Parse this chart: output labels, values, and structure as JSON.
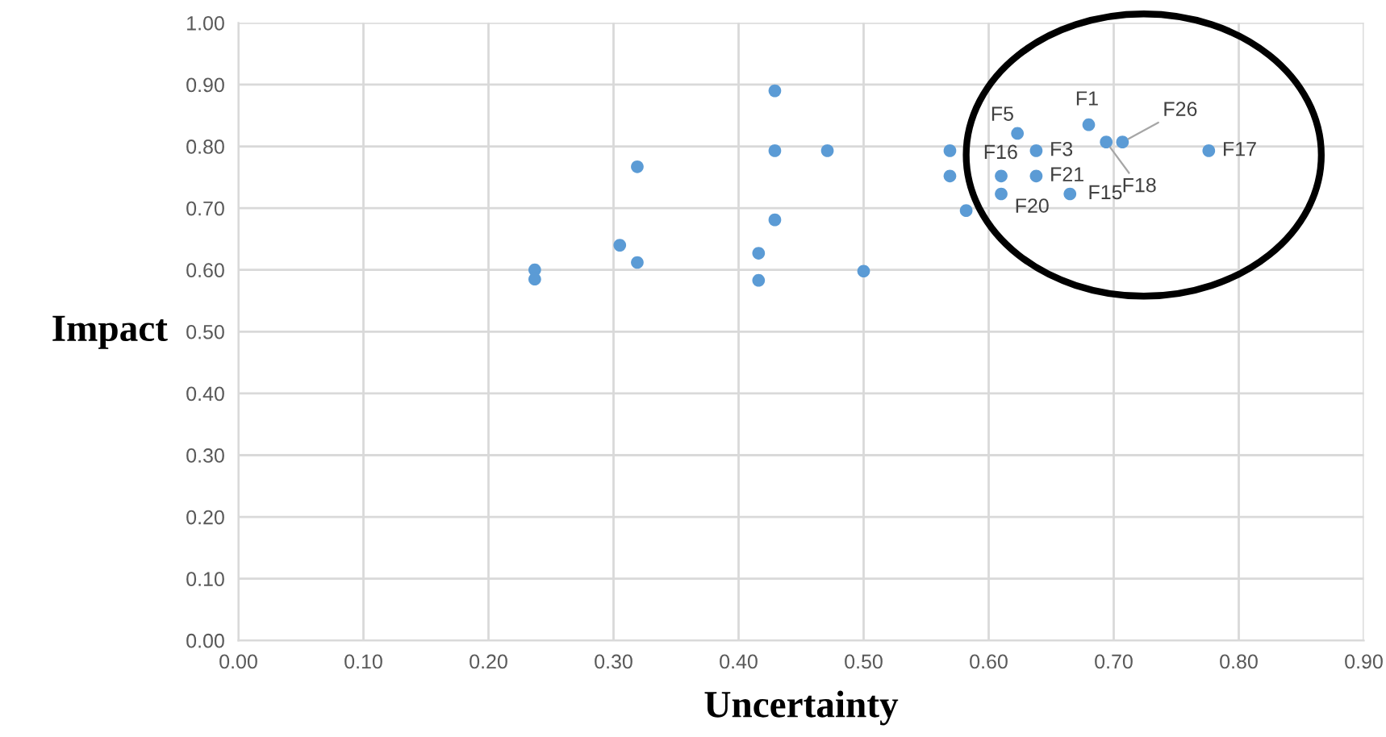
{
  "chart_data": {
    "type": "scatter",
    "xlabel": "Uncertainty",
    "ylabel": "Impact",
    "x": [
      0.237,
      0.237,
      0.429,
      0.429,
      0.471,
      0.319,
      0.429,
      0.305,
      0.319,
      0.416,
      0.416,
      0.5,
      0.569,
      0.569,
      0.582,
      0.623,
      0.638,
      0.61,
      0.638,
      0.61,
      0.665,
      0.68,
      0.694,
      0.707,
      0.776
    ],
    "series": [
      {
        "color": "#5b9bd5",
        "values": [
          0.6,
          0.585,
          0.89,
          0.793,
          0.793,
          0.767,
          0.681,
          0.64,
          0.612,
          0.627,
          0.583,
          0.598,
          0.793,
          0.752,
          0.696,
          0.821,
          0.793,
          0.752,
          0.752,
          0.723,
          0.723,
          0.835,
          0.807,
          0.807,
          0.793
        ],
        "value_labels": [
          null,
          null,
          null,
          null,
          null,
          null,
          null,
          null,
          null,
          null,
          null,
          null,
          null,
          null,
          null,
          "F5",
          "F3",
          "F16",
          "F21",
          "F20",
          "F15",
          "F1",
          "F18",
          "F26",
          "F17"
        ]
      }
    ],
    "xlim": [
      0,
      0.9
    ],
    "xticks": [
      {
        "value": 0,
        "label": "0.00"
      },
      {
        "value": 0.1,
        "label": "0.10"
      },
      {
        "value": 0.2,
        "label": "0.20"
      },
      {
        "value": 0.3,
        "label": "0.30"
      },
      {
        "value": 0.4,
        "label": "0.40"
      },
      {
        "value": 0.5,
        "label": "0.50"
      },
      {
        "value": 0.6,
        "label": "0.60"
      },
      {
        "value": 0.7,
        "label": "0.70"
      },
      {
        "value": 0.8,
        "label": "0.80"
      },
      {
        "value": 0.9,
        "label": "0.90"
      }
    ],
    "ylim": [
      0,
      1
    ],
    "yticks": [
      {
        "value": 0,
        "label": "0.00"
      },
      {
        "value": 0.1,
        "label": "0.10"
      },
      {
        "value": 0.2,
        "label": "0.20"
      },
      {
        "value": 0.3,
        "label": "0.30"
      },
      {
        "value": 0.4,
        "label": "0.40"
      },
      {
        "value": 0.5,
        "label": "0.50"
      },
      {
        "value": 0.6,
        "label": "0.60"
      },
      {
        "value": 0.7,
        "label": "0.70"
      },
      {
        "value": 0.8,
        "label": "0.80"
      },
      {
        "value": 0.9,
        "label": "0.90"
      },
      {
        "value": 1,
        "label": "1.00"
      }
    ],
    "grid": true,
    "marker": "circle"
  }
}
